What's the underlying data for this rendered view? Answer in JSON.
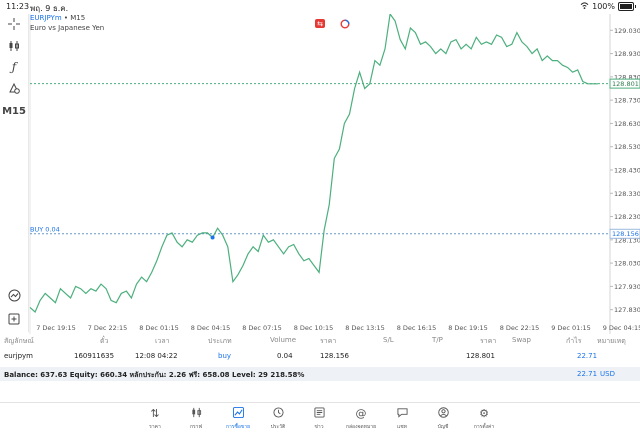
{
  "status_bar": {
    "time": "11:23",
    "date": "พฤ. 9 ธ.ค.",
    "battery": "100%"
  },
  "chart": {
    "symbol": "EURJPYm",
    "separator": "•",
    "timeframe": "M15",
    "description": "Euro vs Japanese Yen",
    "timeframe_button": "M15",
    "buy_line_label": "BUY 0.04",
    "buy_price_label": "128.156",
    "bid_price_label": "128.801",
    "line_color": "#4caf7d",
    "buy_line_color": "#6699cc",
    "bid_line_color": "#4caf7d"
  },
  "chart_data": {
    "type": "line",
    "y_ticks": [
      "129.030",
      "128.930",
      "128.830",
      "128.730",
      "128.630",
      "128.530",
      "128.430",
      "128.330",
      "128.230",
      "128.130",
      "128.030",
      "127.930",
      "127.830"
    ],
    "x_ticks": [
      "7 Dec 19:15",
      "7 Dec 22:15",
      "8 Dec 01:15",
      "8 Dec 04:15",
      "8 Dec 07:15",
      "8 Dec 10:15",
      "8 Dec 13:15",
      "8 Dec 16:15",
      "8 Dec 19:15",
      "8 Dec 22:15",
      "9 Dec 01:15",
      "9 Dec 04:15"
    ],
    "ylim": [
      127.79,
      129.1
    ],
    "xlim": [
      0,
      112
    ],
    "buy_price": 128.156,
    "bid_price": 128.801,
    "x": [
      0,
      1,
      2,
      3,
      4,
      5,
      6,
      7,
      8,
      9,
      10,
      11,
      12,
      13,
      14,
      15,
      16,
      17,
      18,
      19,
      20,
      21,
      22,
      23,
      24,
      25,
      26,
      27,
      28,
      29,
      30,
      31,
      32,
      33,
      34,
      35,
      36,
      37,
      38,
      39,
      40,
      41,
      42,
      43,
      44,
      45,
      46,
      47,
      48,
      49,
      50,
      51,
      52,
      53,
      54,
      55,
      56,
      57,
      58,
      59,
      60,
      61,
      62,
      63,
      64,
      65,
      66,
      67,
      68,
      69,
      70,
      71,
      72,
      73,
      74,
      75,
      76,
      77,
      78,
      79,
      80,
      81,
      82,
      83,
      84,
      85,
      86,
      87,
      88,
      89,
      90,
      91,
      92,
      93,
      94,
      95,
      96,
      97,
      98,
      99,
      100,
      101,
      102,
      103,
      104,
      105,
      106,
      107,
      108,
      109,
      110,
      111,
      112
    ],
    "y": [
      127.84,
      127.82,
      127.87,
      127.9,
      127.88,
      127.86,
      127.92,
      127.9,
      127.88,
      127.93,
      127.92,
      127.9,
      127.92,
      127.91,
      127.94,
      127.92,
      127.87,
      127.86,
      127.9,
      127.91,
      127.88,
      127.94,
      127.97,
      127.95,
      127.99,
      128.04,
      128.1,
      128.15,
      128.16,
      128.12,
      128.1,
      128.13,
      128.12,
      128.15,
      128.16,
      128.16,
      128.14,
      128.18,
      128.15,
      128.1,
      127.95,
      127.98,
      128.02,
      128.07,
      128.1,
      128.08,
      128.15,
      128.12,
      128.13,
      128.1,
      128.07,
      128.1,
      128.11,
      128.07,
      128.04,
      128.05,
      128.02,
      127.99,
      128.17,
      128.28,
      128.48,
      128.52,
      128.63,
      128.67,
      128.78,
      128.85,
      128.78,
      128.8,
      128.9,
      128.88,
      128.95,
      129.1,
      129.07,
      128.99,
      128.95,
      129.04,
      129.02,
      128.97,
      128.98,
      128.96,
      128.93,
      128.95,
      128.93,
      128.98,
      128.99,
      128.95,
      128.97,
      128.95,
      129.0,
      128.97,
      128.98,
      128.97,
      129.01,
      129.0,
      128.96,
      128.97,
      129.02,
      128.98,
      128.96,
      128.93,
      128.95,
      128.9,
      128.92,
      128.9,
      128.9,
      128.88,
      128.87,
      128.85,
      128.86,
      128.81,
      128.8,
      128.8,
      128.8
    ],
    "buy_marker_index": 36
  },
  "table": {
    "headers": [
      "สัญลักษณ์",
      "ตั๋ว",
      "เวลา",
      "ประเภท",
      "Volume",
      "ราคา",
      "S/L",
      "T/P",
      "ราคา",
      "Swap",
      "กำไร",
      "หมายเหตุ"
    ],
    "row": {
      "symbol": "eurjpym",
      "ticket": "160911635",
      "time": "12:08 04:22",
      "type": "buy",
      "volume": "0.04",
      "price": "128.156",
      "sl": "",
      "tp": "",
      "current_price": "128.801",
      "swap": "",
      "profit": "22.71",
      "comment": ""
    }
  },
  "balance": {
    "text": "Balance: 637.63 Equity: 660.34 หลักประกัน: 2.26 ฟรี: 658.08 Level: 29 218.58%",
    "profit": "22.71",
    "currency": "USD"
  },
  "nav": [
    {
      "label": "ราคา",
      "icon": "quotes-icon"
    },
    {
      "label": "กราฟ",
      "icon": "candles-icon"
    },
    {
      "label": "การซื้อขาย",
      "icon": "trade-icon"
    },
    {
      "label": "ประวัติ",
      "icon": "history-icon"
    },
    {
      "label": "ข่าว",
      "icon": "news-icon"
    },
    {
      "label": "กล่องจดหมาย",
      "icon": "mail-icon"
    },
    {
      "label": "แชท",
      "icon": "chat-icon"
    },
    {
      "label": "บัญชี",
      "icon": "account-icon"
    },
    {
      "label": "การตั้งค่า",
      "icon": "settings-icon"
    }
  ],
  "active_nav": 2
}
